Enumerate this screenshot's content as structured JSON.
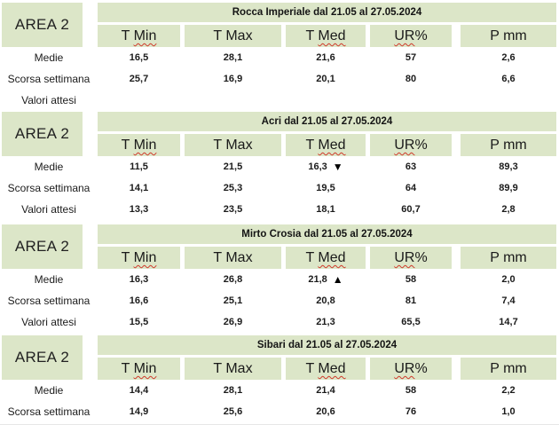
{
  "area_label": "AREA 2",
  "columns": [
    {
      "key": "t-min",
      "pre": "T ",
      "wavy": "Min",
      "post": ""
    },
    {
      "key": "t-max",
      "pre": "T Max",
      "wavy": "",
      "post": ""
    },
    {
      "key": "t-med",
      "pre": "T ",
      "wavy": "Med",
      "post": ""
    },
    {
      "key": "ur",
      "pre": "",
      "wavy": "UR",
      "post": "%"
    },
    {
      "key": "p-mm",
      "pre": "P mm",
      "wavy": "",
      "post": ""
    }
  ],
  "markers": {
    "down": "▼",
    "up": "▲"
  },
  "colors": {
    "header_bg": "#dce6c8",
    "squiggle": "#cf3a2b",
    "text": "#1b1b1b"
  },
  "sections": [
    {
      "key": "rocca-imperiale",
      "title": "Rocca Imperiale  dal 21.05 al 27.05.2024",
      "trend_marker": null,
      "rows": [
        {
          "label": "Medie",
          "values": [
            "16,5",
            "28,1",
            "21,6",
            "57",
            "2,6"
          ]
        },
        {
          "label": "Scorsa settimana",
          "values": [
            "25,7",
            "16,9",
            "20,1",
            "80",
            "6,6"
          ]
        },
        {
          "label": "Valori attesi",
          "values": [
            "",
            "",
            "",
            "",
            ""
          ]
        }
      ]
    },
    {
      "key": "acri",
      "title": "Acri dal 21.05 al 27.05.2024",
      "trend_marker": {
        "row": 0,
        "col": 2,
        "dir": "down"
      },
      "rows": [
        {
          "label": "Medie",
          "values": [
            "11,5",
            "21,5",
            "16,3",
            "63",
            "89,3"
          ]
        },
        {
          "label": "Scorsa settimana",
          "values": [
            "14,1",
            "25,3",
            "19,5",
            "64",
            "89,9"
          ]
        },
        {
          "label": "Valori attesi",
          "values": [
            "13,3",
            "23,5",
            "18,1",
            "60,7",
            "2,8"
          ]
        }
      ]
    },
    {
      "key": "mirto-crosia",
      "title": "Mirto Crosia dal 21.05 al 27.05.2024",
      "trend_marker": {
        "row": 0,
        "col": 2,
        "dir": "up"
      },
      "rows": [
        {
          "label": "Medie",
          "values": [
            "16,3",
            "26,8",
            "21,8",
            "58",
            "2,0"
          ]
        },
        {
          "label": "Scorsa settimana",
          "values": [
            "16,6",
            "25,1",
            "20,8",
            "81",
            "7,4"
          ]
        },
        {
          "label": "Valori attesi",
          "values": [
            "15,5",
            "26,9",
            "21,3",
            "65,5",
            "14,7"
          ]
        }
      ]
    },
    {
      "key": "sibari",
      "title": "Sibari dal 21.05 al 27.05.2024",
      "trend_marker": null,
      "rows": [
        {
          "label": "Medie",
          "values": [
            "14,4",
            "28,1",
            "21,4",
            "58",
            "2,2"
          ]
        },
        {
          "label": "Scorsa settimana",
          "values": [
            "14,9",
            "25,6",
            "20,6",
            "76",
            "1,0"
          ]
        }
      ]
    }
  ]
}
